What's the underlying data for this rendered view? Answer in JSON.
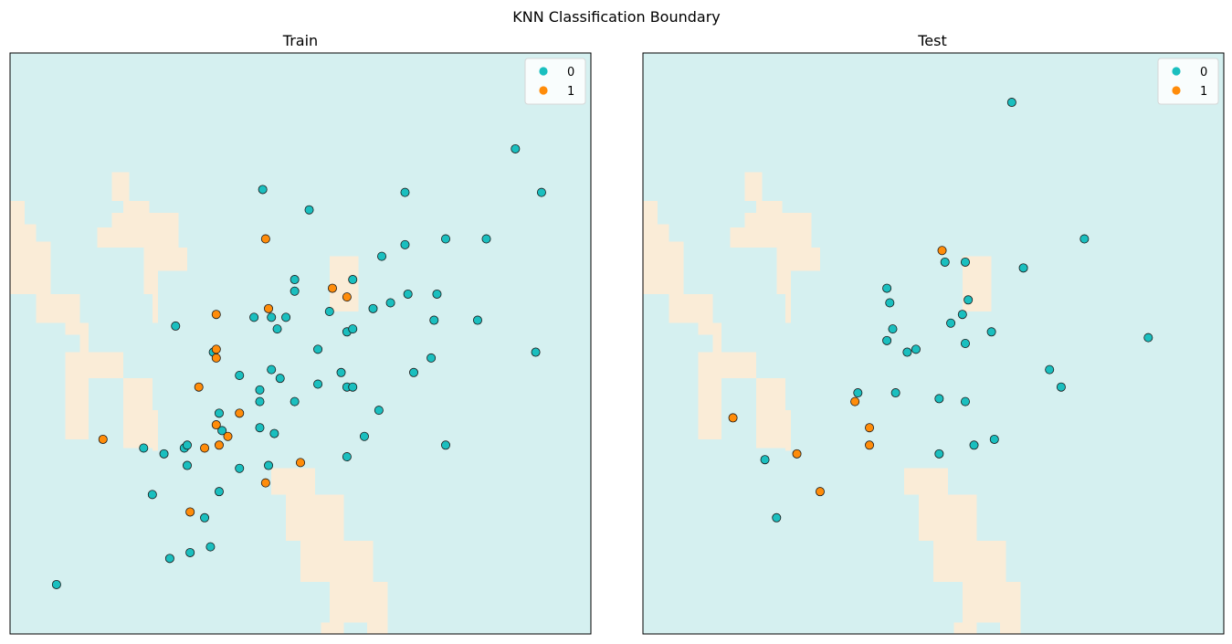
{
  "figure": {
    "suptitle": "KNN Classification Boundary"
  },
  "colors": {
    "class0_point": "#1ABFBF",
    "class1_point": "#FF8C0A",
    "class0_region": "#D5F0F0",
    "class1_region": "#FAECD7",
    "point_edge": "#1a1a1a",
    "axes_edge": "#000000"
  },
  "chart_data": [
    {
      "type": "scatter",
      "title": "Train",
      "xlim": [
        0,
        1
      ],
      "ylim": [
        0,
        1
      ],
      "grid": false,
      "ticks": false,
      "legend": {
        "position": "top-right",
        "entries": [
          "0",
          "1"
        ]
      },
      "decision_region_class1": [
        [
          0.0,
          0.585,
          0.025,
          0.745
        ],
        [
          0.025,
          0.585,
          0.045,
          0.705
        ],
        [
          0.045,
          0.585,
          0.07,
          0.675
        ],
        [
          0.045,
          0.535,
          0.095,
          0.585
        ],
        [
          0.095,
          0.515,
          0.12,
          0.585
        ],
        [
          0.12,
          0.485,
          0.135,
          0.535
        ],
        [
          0.135,
          0.44,
          0.195,
          0.485
        ],
        [
          0.195,
          0.32,
          0.245,
          0.44
        ],
        [
          0.245,
          0.315,
          0.255,
          0.385
        ],
        [
          0.095,
          0.335,
          0.135,
          0.485
        ],
        [
          0.175,
          0.7,
          0.29,
          0.725
        ],
        [
          0.15,
          0.665,
          0.29,
          0.7
        ],
        [
          0.23,
          0.625,
          0.305,
          0.665
        ],
        [
          0.175,
          0.745,
          0.205,
          0.795
        ],
        [
          0.195,
          0.725,
          0.24,
          0.745
        ],
        [
          0.23,
          0.585,
          0.255,
          0.625
        ],
        [
          0.245,
          0.535,
          0.255,
          0.585
        ],
        [
          0.55,
          0.555,
          0.6,
          0.65
        ],
        [
          0.45,
          0.24,
          0.525,
          0.285
        ],
        [
          0.475,
          0.16,
          0.575,
          0.24
        ],
        [
          0.5,
          0.09,
          0.625,
          0.16
        ],
        [
          0.55,
          0.02,
          0.65,
          0.09
        ],
        [
          0.615,
          0.0,
          0.65,
          0.02
        ],
        [
          0.535,
          0.0,
          0.575,
          0.02
        ]
      ],
      "points_class0": [
        [
          0.08,
          0.085
        ],
        [
          0.87,
          0.835
        ],
        [
          0.915,
          0.76
        ],
        [
          0.905,
          0.485
        ],
        [
          0.68,
          0.76
        ],
        [
          0.435,
          0.765
        ],
        [
          0.515,
          0.73
        ],
        [
          0.75,
          0.68
        ],
        [
          0.82,
          0.68
        ],
        [
          0.68,
          0.67
        ],
        [
          0.64,
          0.65
        ],
        [
          0.49,
          0.61
        ],
        [
          0.49,
          0.59
        ],
        [
          0.59,
          0.61
        ],
        [
          0.625,
          0.56
        ],
        [
          0.655,
          0.57
        ],
        [
          0.685,
          0.585
        ],
        [
          0.735,
          0.585
        ],
        [
          0.42,
          0.545
        ],
        [
          0.45,
          0.545
        ],
        [
          0.475,
          0.545
        ],
        [
          0.55,
          0.555
        ],
        [
          0.285,
          0.53
        ],
        [
          0.58,
          0.52
        ],
        [
          0.59,
          0.525
        ],
        [
          0.46,
          0.525
        ],
        [
          0.73,
          0.54
        ],
        [
          0.805,
          0.54
        ],
        [
          0.35,
          0.485
        ],
        [
          0.53,
          0.49
        ],
        [
          0.725,
          0.475
        ],
        [
          0.45,
          0.455
        ],
        [
          0.465,
          0.44
        ],
        [
          0.57,
          0.45
        ],
        [
          0.395,
          0.445
        ],
        [
          0.695,
          0.45
        ],
        [
          0.53,
          0.43
        ],
        [
          0.58,
          0.425
        ],
        [
          0.59,
          0.425
        ],
        [
          0.43,
          0.42
        ],
        [
          0.43,
          0.4
        ],
        [
          0.49,
          0.4
        ],
        [
          0.635,
          0.385
        ],
        [
          0.36,
          0.38
        ],
        [
          0.365,
          0.35
        ],
        [
          0.43,
          0.355
        ],
        [
          0.455,
          0.345
        ],
        [
          0.61,
          0.34
        ],
        [
          0.75,
          0.325
        ],
        [
          0.3,
          0.32
        ],
        [
          0.305,
          0.325
        ],
        [
          0.23,
          0.32
        ],
        [
          0.265,
          0.31
        ],
        [
          0.58,
          0.305
        ],
        [
          0.305,
          0.29
        ],
        [
          0.445,
          0.29
        ],
        [
          0.395,
          0.285
        ],
        [
          0.245,
          0.24
        ],
        [
          0.36,
          0.245
        ],
        [
          0.335,
          0.2
        ],
        [
          0.345,
          0.15
        ],
        [
          0.31,
          0.14
        ],
        [
          0.275,
          0.13
        ]
      ],
      "points_class1": [
        [
          0.44,
          0.68
        ],
        [
          0.555,
          0.595
        ],
        [
          0.58,
          0.58
        ],
        [
          0.445,
          0.56
        ],
        [
          0.355,
          0.55
        ],
        [
          0.355,
          0.475
        ],
        [
          0.355,
          0.49
        ],
        [
          0.325,
          0.425
        ],
        [
          0.395,
          0.38
        ],
        [
          0.355,
          0.36
        ],
        [
          0.375,
          0.34
        ],
        [
          0.16,
          0.335
        ],
        [
          0.335,
          0.32
        ],
        [
          0.36,
          0.325
        ],
        [
          0.5,
          0.295
        ],
        [
          0.44,
          0.26
        ],
        [
          0.31,
          0.21
        ]
      ]
    },
    {
      "type": "scatter",
      "title": "Test",
      "xlim": [
        0,
        1
      ],
      "ylim": [
        0,
        1
      ],
      "grid": false,
      "ticks": false,
      "legend": {
        "position": "top-right",
        "entries": [
          "0",
          "1"
        ]
      },
      "decision_region_class1": [
        [
          0.0,
          0.585,
          0.025,
          0.745
        ],
        [
          0.025,
          0.585,
          0.045,
          0.705
        ],
        [
          0.045,
          0.585,
          0.07,
          0.675
        ],
        [
          0.045,
          0.535,
          0.095,
          0.585
        ],
        [
          0.095,
          0.515,
          0.12,
          0.585
        ],
        [
          0.12,
          0.485,
          0.135,
          0.535
        ],
        [
          0.135,
          0.44,
          0.195,
          0.485
        ],
        [
          0.195,
          0.32,
          0.245,
          0.44
        ],
        [
          0.245,
          0.315,
          0.255,
          0.385
        ],
        [
          0.095,
          0.335,
          0.135,
          0.485
        ],
        [
          0.175,
          0.7,
          0.29,
          0.725
        ],
        [
          0.15,
          0.665,
          0.29,
          0.7
        ],
        [
          0.23,
          0.625,
          0.305,
          0.665
        ],
        [
          0.175,
          0.745,
          0.205,
          0.795
        ],
        [
          0.195,
          0.725,
          0.24,
          0.745
        ],
        [
          0.23,
          0.585,
          0.255,
          0.625
        ],
        [
          0.245,
          0.535,
          0.255,
          0.585
        ],
        [
          0.55,
          0.555,
          0.6,
          0.65
        ],
        [
          0.45,
          0.24,
          0.525,
          0.285
        ],
        [
          0.475,
          0.16,
          0.575,
          0.24
        ],
        [
          0.5,
          0.09,
          0.625,
          0.16
        ],
        [
          0.55,
          0.02,
          0.65,
          0.09
        ],
        [
          0.615,
          0.0,
          0.65,
          0.02
        ],
        [
          0.535,
          0.0,
          0.575,
          0.02
        ]
      ],
      "points_class0": [
        [
          0.635,
          0.915
        ],
        [
          0.76,
          0.68
        ],
        [
          0.655,
          0.63
        ],
        [
          0.52,
          0.64
        ],
        [
          0.555,
          0.64
        ],
        [
          0.87,
          0.51
        ],
        [
          0.42,
          0.595
        ],
        [
          0.425,
          0.57
        ],
        [
          0.56,
          0.575
        ],
        [
          0.55,
          0.55
        ],
        [
          0.53,
          0.535
        ],
        [
          0.6,
          0.52
        ],
        [
          0.43,
          0.525
        ],
        [
          0.42,
          0.505
        ],
        [
          0.555,
          0.5
        ],
        [
          0.47,
          0.49
        ],
        [
          0.455,
          0.485
        ],
        [
          0.7,
          0.455
        ],
        [
          0.72,
          0.425
        ],
        [
          0.37,
          0.415
        ],
        [
          0.435,
          0.415
        ],
        [
          0.51,
          0.405
        ],
        [
          0.555,
          0.4
        ],
        [
          0.605,
          0.335
        ],
        [
          0.57,
          0.325
        ],
        [
          0.51,
          0.31
        ],
        [
          0.21,
          0.3
        ],
        [
          0.23,
          0.2
        ]
      ],
      "points_class1": [
        [
          0.515,
          0.66
        ],
        [
          0.365,
          0.4
        ],
        [
          0.155,
          0.372
        ],
        [
          0.39,
          0.355
        ],
        [
          0.39,
          0.325
        ],
        [
          0.265,
          0.31
        ],
        [
          0.305,
          0.245
        ]
      ]
    }
  ]
}
